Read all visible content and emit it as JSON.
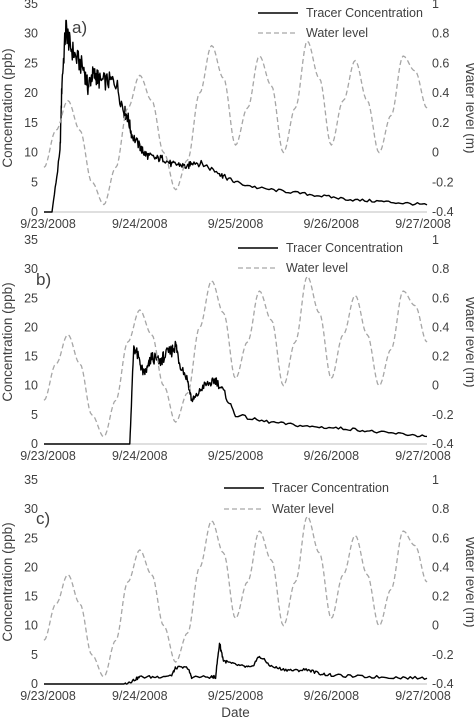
{
  "chart_data": [
    {
      "type": "line",
      "panel_label": "a)",
      "xlabel": "",
      "ylabel": "Concentration (ppb)",
      "ylabel_right": "Water level (m)",
      "x_tick_labels": [
        "9/23/2008",
        "9/24/2008",
        "9/25/2008",
        "9/26/2008",
        "9/27/2008"
      ],
      "y_tick_labels": [
        "0",
        "5",
        "10",
        "15",
        "20",
        "25",
        "30",
        "35"
      ],
      "y2_tick_labels": [
        "-0.4",
        "-0.2",
        "0",
        "0.2",
        "0.4",
        "0.6",
        "0.8",
        "1"
      ],
      "xlim": [
        "2008-09-23",
        "2008-09-27"
      ],
      "ylim": [
        0,
        35
      ],
      "y2lim": [
        -0.4,
        1.0
      ],
      "grid": false,
      "legend_position": "top-right",
      "series": [
        {
          "name": "Tracer Concentration",
          "axis": "left",
          "style": "solid",
          "color": "#000000",
          "x": [
            "2008-09-23 00:00",
            "2008-09-23 02:00",
            "2008-09-23 04:00",
            "2008-09-23 04:30",
            "2008-09-23 05:30",
            "2008-09-23 06:30",
            "2008-09-23 08:00",
            "2008-09-23 10:00",
            "2008-09-23 11:00",
            "2008-09-23 12:00",
            "2008-09-23 13:00",
            "2008-09-23 14:00",
            "2008-09-23 16:00",
            "2008-09-23 18:00",
            "2008-09-23 20:00",
            "2008-09-23 21:00",
            "2008-09-23 22:00",
            "2008-09-24 00:00",
            "2008-09-24 01:00",
            "2008-09-24 02:00",
            "2008-09-24 04:00",
            "2008-09-24 06:00",
            "2008-09-24 08:00",
            "2008-09-24 10:00",
            "2008-09-24 12:00",
            "2008-09-24 13:00",
            "2008-09-24 16:00",
            "2008-09-24 20:00",
            "2008-09-24 21:00",
            "2008-09-25 00:00",
            "2008-09-25 06:00",
            "2008-09-25 12:00",
            "2008-09-25 18:00",
            "2008-09-26 00:00",
            "2008-09-26 06:00",
            "2008-09-26 12:00",
            "2008-09-26 18:00",
            "2008-09-27 00:00"
          ],
          "values": [
            0,
            0,
            10,
            22,
            31,
            28,
            26,
            24,
            21,
            23,
            23,
            22,
            22,
            22,
            17,
            16,
            13,
            11,
            10,
            9.5,
            9,
            9,
            8,
            8,
            7.5,
            8.5,
            8,
            6.5,
            6,
            5,
            4,
            3.5,
            3,
            2.5,
            2,
            1.8,
            1.5,
            1.2
          ]
        },
        {
          "name": "Water level",
          "axis": "right",
          "style": "dashed",
          "color": "#a6a6a6",
          "x": [
            "2008-09-23 00:00",
            "2008-09-23 03:00",
            "2008-09-23 06:00",
            "2008-09-23 09:00",
            "2008-09-23 12:00",
            "2008-09-23 15:00",
            "2008-09-23 18:00",
            "2008-09-23 21:00",
            "2008-09-24 00:00",
            "2008-09-24 03:00",
            "2008-09-24 06:00",
            "2008-09-24 09:00",
            "2008-09-24 12:00",
            "2008-09-24 15:00",
            "2008-09-24 18:00",
            "2008-09-24 21:00",
            "2008-09-25 00:00",
            "2008-09-25 03:00",
            "2008-09-25 06:00",
            "2008-09-25 09:00",
            "2008-09-25 12:00",
            "2008-09-25 15:00",
            "2008-09-25 18:00",
            "2008-09-25 21:00",
            "2008-09-26 00:00",
            "2008-09-26 03:00",
            "2008-09-26 06:00",
            "2008-09-26 09:00",
            "2008-09-26 12:00",
            "2008-09-26 15:00",
            "2008-09-26 18:00",
            "2008-09-26 21:00",
            "2008-09-27 00:00"
          ],
          "values": [
            -0.1,
            0.15,
            0.35,
            0.15,
            -0.2,
            -0.35,
            -0.1,
            0.3,
            0.52,
            0.35,
            0.0,
            -0.25,
            -0.05,
            0.4,
            0.72,
            0.5,
            0.05,
            0.3,
            0.65,
            0.45,
            0.0,
            0.3,
            0.75,
            0.5,
            0.05,
            0.35,
            0.62,
            0.35,
            0.0,
            0.25,
            0.65,
            0.55,
            0.3
          ]
        }
      ]
    },
    {
      "type": "line",
      "panel_label": "b)",
      "xlabel": "",
      "ylabel": "Concentration (ppb)",
      "ylabel_right": "Water level (m)",
      "x_tick_labels": [
        "9/23/2008",
        "9/24/2008",
        "9/25/2008",
        "9/26/2008",
        "9/27/2008"
      ],
      "y_tick_labels": [
        "0",
        "5",
        "10",
        "15",
        "20",
        "25",
        "30",
        "35"
      ],
      "y2_tick_labels": [
        "-0.4",
        "-0.2",
        "0",
        "0.2",
        "0.4",
        "0.6",
        "0.8",
        "1"
      ],
      "xlim": [
        "2008-09-23",
        "2008-09-27"
      ],
      "ylim": [
        0,
        35
      ],
      "y2lim": [
        -0.4,
        1.0
      ],
      "grid": false,
      "legend_position": "top-right",
      "series": [
        {
          "name": "Tracer Concentration",
          "axis": "left",
          "style": "solid",
          "color": "#000000",
          "x": [
            "2008-09-23 00:00",
            "2008-09-23 16:00",
            "2008-09-23 20:00",
            "2008-09-23 21:30",
            "2008-09-23 22:30",
            "2008-09-24 00:00",
            "2008-09-24 01:00",
            "2008-09-24 02:00",
            "2008-09-24 03:00",
            "2008-09-24 05:00",
            "2008-09-24 06:00",
            "2008-09-24 08:00",
            "2008-09-24 09:00",
            "2008-09-24 10:00",
            "2008-09-24 12:00",
            "2008-09-24 13:00",
            "2008-09-24 14:00",
            "2008-09-24 16:00",
            "2008-09-24 18:00",
            "2008-09-24 19:00",
            "2008-09-24 21:00",
            "2008-09-25 00:00",
            "2008-09-25 06:00",
            "2008-09-25 12:00",
            "2008-09-25 18:00",
            "2008-09-26 00:00",
            "2008-09-26 06:00",
            "2008-09-26 12:00",
            "2008-09-26 18:00",
            "2008-09-27 00:00"
          ],
          "values": [
            0,
            0,
            0,
            0,
            17,
            14,
            12,
            13,
            15,
            14,
            15,
            16,
            17,
            14,
            11,
            7.5,
            8,
            10,
            10.5,
            11,
            9,
            5,
            4,
            3.5,
            3,
            2.8,
            2.5,
            2,
            1.7,
            1.3
          ]
        },
        {
          "name": "Water level",
          "axis": "right",
          "style": "dashed",
          "color": "#a6a6a6",
          "x": [
            "2008-09-23 00:00",
            "2008-09-23 03:00",
            "2008-09-23 06:00",
            "2008-09-23 09:00",
            "2008-09-23 12:00",
            "2008-09-23 15:00",
            "2008-09-23 18:00",
            "2008-09-23 21:00",
            "2008-09-24 00:00",
            "2008-09-24 03:00",
            "2008-09-24 06:00",
            "2008-09-24 09:00",
            "2008-09-24 12:00",
            "2008-09-24 15:00",
            "2008-09-24 18:00",
            "2008-09-24 21:00",
            "2008-09-25 00:00",
            "2008-09-25 03:00",
            "2008-09-25 06:00",
            "2008-09-25 09:00",
            "2008-09-25 12:00",
            "2008-09-25 15:00",
            "2008-09-25 18:00",
            "2008-09-25 21:00",
            "2008-09-26 00:00",
            "2008-09-26 03:00",
            "2008-09-26 06:00",
            "2008-09-26 09:00",
            "2008-09-26 12:00",
            "2008-09-26 15:00",
            "2008-09-26 18:00",
            "2008-09-26 21:00",
            "2008-09-27 00:00"
          ],
          "values": [
            -0.1,
            0.15,
            0.35,
            0.15,
            -0.2,
            -0.35,
            -0.1,
            0.3,
            0.52,
            0.35,
            0.0,
            -0.25,
            -0.05,
            0.4,
            0.72,
            0.5,
            0.05,
            0.3,
            0.65,
            0.45,
            0.0,
            0.3,
            0.75,
            0.5,
            0.05,
            0.35,
            0.62,
            0.35,
            0.0,
            0.25,
            0.65,
            0.55,
            0.3
          ]
        }
      ]
    },
    {
      "type": "line",
      "panel_label": "c)",
      "xlabel": "Date",
      "ylabel": "Concentration (ppb)",
      "ylabel_right": "Water level (m)",
      "x_tick_labels": [
        "9/23/2008",
        "9/24/2008",
        "9/25/2008",
        "9/26/2008",
        "9/27/2008"
      ],
      "y_tick_labels": [
        "0",
        "5",
        "10",
        "15",
        "20",
        "25",
        "30",
        "35"
      ],
      "y2_tick_labels": [
        "-0.4",
        "-0.2",
        "0",
        "0.2",
        "0.4",
        "0.6",
        "0.8",
        "1"
      ],
      "xlim": [
        "2008-09-23",
        "2008-09-27"
      ],
      "ylim": [
        0,
        35
      ],
      "y2lim": [
        -0.4,
        1.0
      ],
      "grid": false,
      "legend_position": "top-center",
      "series": [
        {
          "name": "Tracer Concentration",
          "axis": "left",
          "style": "solid",
          "color": "#000000",
          "x": [
            "2008-09-23 00:00",
            "2008-09-23 20:00",
            "2008-09-23 22:00",
            "2008-09-24 00:00",
            "2008-09-24 04:00",
            "2008-09-24 08:00",
            "2008-09-24 09:00",
            "2008-09-24 12:00",
            "2008-09-24 13:00",
            "2008-09-24 18:00",
            "2008-09-24 19:00",
            "2008-09-24 20:00",
            "2008-09-24 21:00",
            "2008-09-24 23:00",
            "2008-09-25 02:00",
            "2008-09-25 04:00",
            "2008-09-25 06:00",
            "2008-09-25 09:00",
            "2008-09-25 12:00",
            "2008-09-25 15:00",
            "2008-09-25 18:00",
            "2008-09-25 21:00",
            "2008-09-26 00:00",
            "2008-09-26 06:00",
            "2008-09-26 12:00",
            "2008-09-26 18:00",
            "2008-09-27 00:00"
          ],
          "values": [
            0,
            0,
            0.5,
            1.2,
            1.2,
            1.5,
            2.8,
            2.8,
            1.2,
            1.2,
            1.2,
            7,
            4,
            3.5,
            3,
            2.8,
            4.8,
            3,
            2.5,
            2.3,
            2.5,
            1.8,
            1.5,
            1.3,
            1.2,
            1.1,
            1.0
          ]
        },
        {
          "name": "Water level",
          "axis": "right",
          "style": "dashed",
          "color": "#a6a6a6",
          "x": [
            "2008-09-23 00:00",
            "2008-09-23 03:00",
            "2008-09-23 06:00",
            "2008-09-23 09:00",
            "2008-09-23 12:00",
            "2008-09-23 15:00",
            "2008-09-23 18:00",
            "2008-09-23 21:00",
            "2008-09-24 00:00",
            "2008-09-24 03:00",
            "2008-09-24 06:00",
            "2008-09-24 09:00",
            "2008-09-24 12:00",
            "2008-09-24 15:00",
            "2008-09-24 18:00",
            "2008-09-24 21:00",
            "2008-09-25 00:00",
            "2008-09-25 03:00",
            "2008-09-25 06:00",
            "2008-09-25 09:00",
            "2008-09-25 12:00",
            "2008-09-25 15:00",
            "2008-09-25 18:00",
            "2008-09-25 21:00",
            "2008-09-26 00:00",
            "2008-09-26 03:00",
            "2008-09-26 06:00",
            "2008-09-26 09:00",
            "2008-09-26 12:00",
            "2008-09-26 15:00",
            "2008-09-26 18:00",
            "2008-09-26 21:00",
            "2008-09-27 00:00"
          ],
          "values": [
            -0.1,
            0.15,
            0.35,
            0.15,
            -0.2,
            -0.35,
            -0.1,
            0.3,
            0.52,
            0.35,
            0.0,
            -0.25,
            -0.05,
            0.4,
            0.72,
            0.5,
            0.05,
            0.3,
            0.65,
            0.45,
            0.0,
            0.3,
            0.75,
            0.5,
            0.05,
            0.35,
            0.62,
            0.35,
            0.0,
            0.25,
            0.65,
            0.55,
            0.3
          ]
        }
      ]
    }
  ]
}
